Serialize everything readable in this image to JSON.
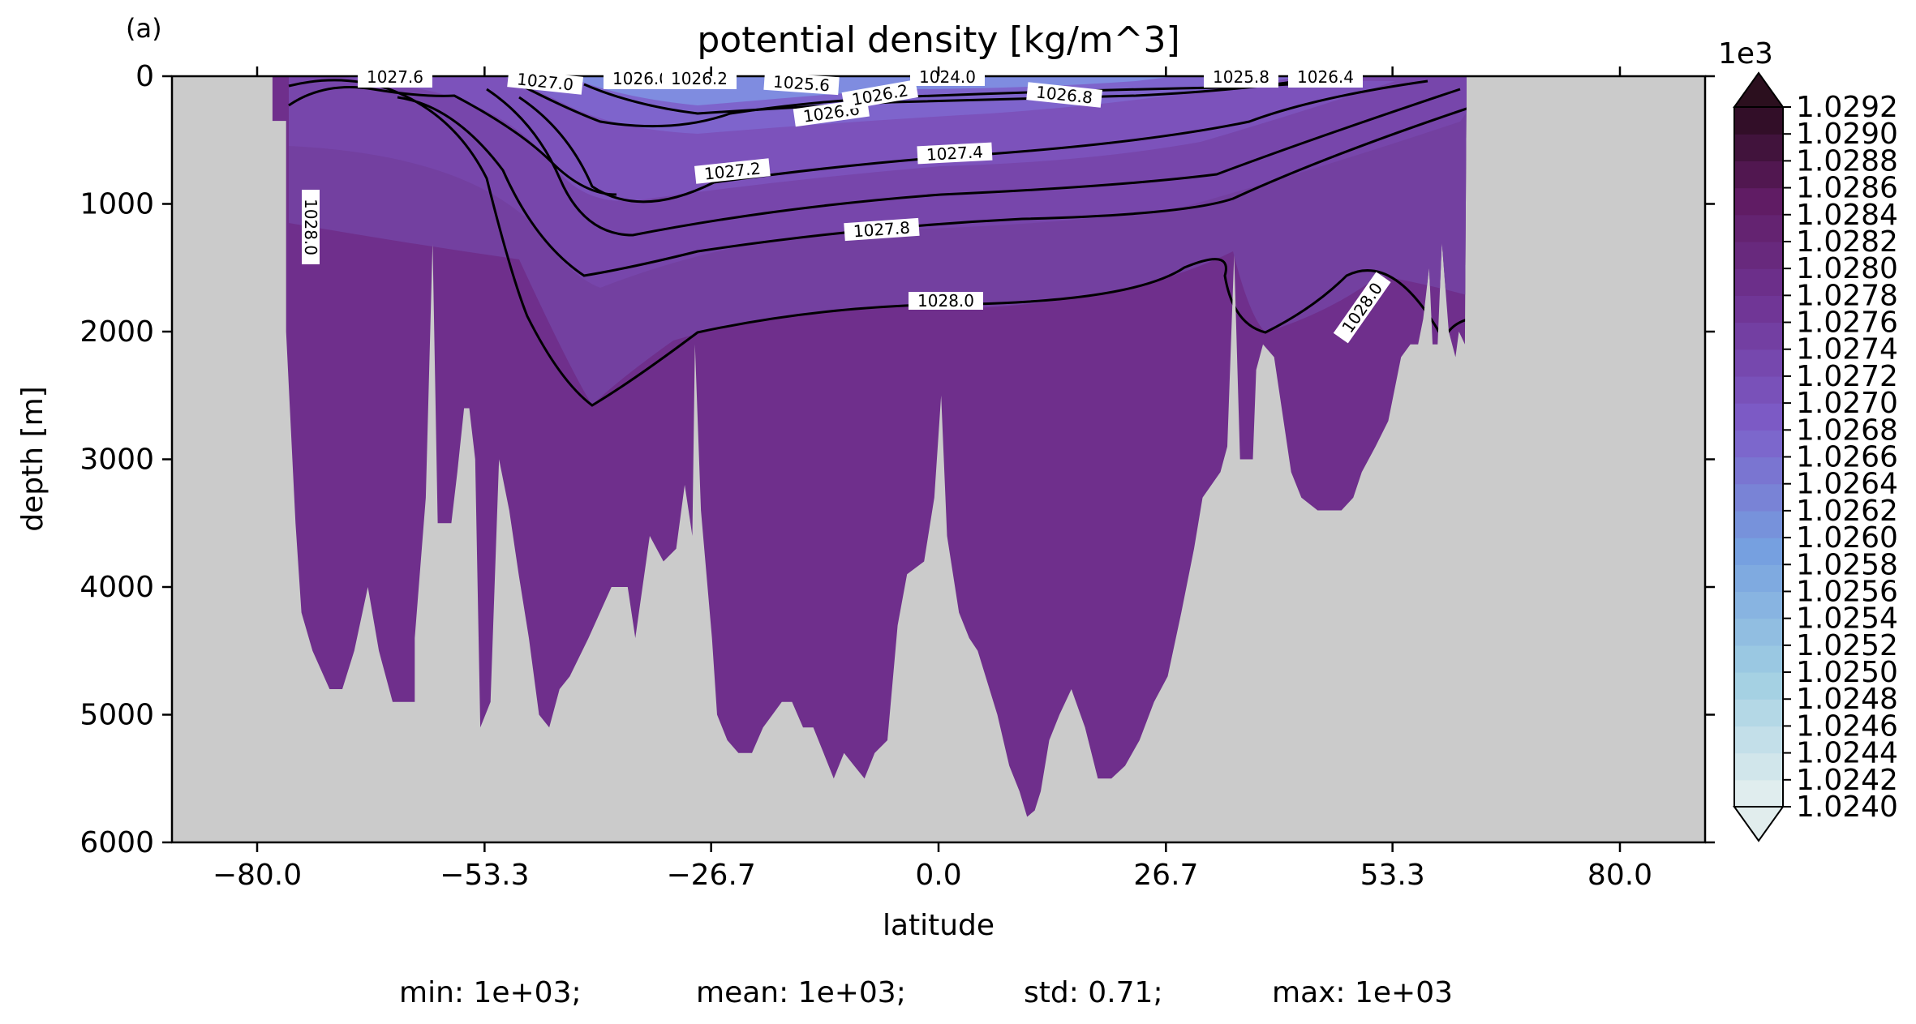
{
  "chart_data": {
    "type": "contour",
    "panel_label": "(a)",
    "title": "potential density [kg/m^3]",
    "xlabel": "latitude",
    "ylabel": "depth [m]",
    "xlim": [
      -90,
      90
    ],
    "ylim": [
      6000,
      0
    ],
    "xticks": [
      "-80.0",
      "-53.3",
      "-26.7",
      "0.0",
      "26.7",
      "53.3",
      "80.0"
    ],
    "yticks": [
      "0",
      "1000",
      "2000",
      "3000",
      "4000",
      "5000",
      "6000"
    ],
    "colorbar": {
      "multiplier": "1e3",
      "ticks": [
        "1.0240",
        "1.0242",
        "1.0244",
        "1.0246",
        "1.0248",
        "1.0250",
        "1.0252",
        "1.0254",
        "1.0256",
        "1.0258",
        "1.0260",
        "1.0262",
        "1.0264",
        "1.0266",
        "1.0268",
        "1.0270",
        "1.0272",
        "1.0274",
        "1.0276",
        "1.0278",
        "1.0280",
        "1.0282",
        "1.0284",
        "1.0286",
        "1.0288",
        "1.0290",
        "1.0292"
      ]
    },
    "contour_labels": [
      "1027.6",
      "1027.0",
      "1026.0",
      "1026.2",
      "1025.6",
      "1026.6",
      "1026.2",
      "1024.0",
      "1026.8",
      "1025.8",
      "1026.4",
      "1027.2",
      "1027.4",
      "1027.8",
      "1028.0",
      "1028.0",
      "1028.0"
    ],
    "stats": {
      "min": "min: 1e+03;",
      "mean": "mean: 1e+03;",
      "std": "std: 0.71;",
      "max": "max: 1e+03"
    },
    "colors": {
      "land": "#cbcbcb",
      "deep_water": "#6f2f8c",
      "mid_water": "#7a44ad",
      "upper_water": "#7f5cc6",
      "surface_water": "#7f8fe0"
    },
    "bathymetry_profile": [
      [
        -78.2,
        0
      ],
      [
        -78.2,
        350
      ],
      [
        -76.6,
        350
      ],
      [
        -76.6,
        2000
      ],
      [
        -75.5,
        3500
      ],
      [
        -74.8,
        4200
      ],
      [
        -73.5,
        4500
      ],
      [
        -71.5,
        4800
      ],
      [
        -70,
        4800
      ],
      [
        -68.6,
        4500
      ],
      [
        -67,
        4000
      ],
      [
        -65.7,
        4500
      ],
      [
        -64.1,
        4900
      ],
      [
        -61.5,
        4900
      ],
      [
        -61.5,
        4400
      ],
      [
        -60.2,
        3300
      ],
      [
        -59.4,
        1300
      ],
      [
        -58.8,
        3500
      ],
      [
        -57.2,
        3500
      ],
      [
        -56.5,
        3100
      ],
      [
        -55.7,
        2600
      ],
      [
        -55.1,
        2600
      ],
      [
        -54.4,
        3000
      ],
      [
        -53.8,
        5100
      ],
      [
        -52.6,
        4900
      ],
      [
        -51.6,
        3000
      ],
      [
        -50.4,
        3400
      ],
      [
        -49.3,
        3900
      ],
      [
        -48.1,
        4400
      ],
      [
        -46.9,
        5000
      ],
      [
        -45.7,
        5100
      ],
      [
        -44.5,
        4800
      ],
      [
        -43.3,
        4700
      ],
      [
        -41.1,
        4400
      ],
      [
        -38.4,
        4000
      ],
      [
        -36.5,
        4000
      ],
      [
        -35.6,
        4400
      ],
      [
        -33.9,
        3600
      ],
      [
        -32.3,
        3800
      ],
      [
        -30.8,
        3700
      ],
      [
        -29.8,
        3200
      ],
      [
        -28.9,
        3600
      ],
      [
        -28.6,
        2100
      ],
      [
        -27.9,
        3400
      ],
      [
        -26.6,
        4400
      ],
      [
        -26,
        5000
      ],
      [
        -24.8,
        5200
      ],
      [
        -23.5,
        5300
      ],
      [
        -21.9,
        5300
      ],
      [
        -20.6,
        5100
      ],
      [
        -18.4,
        4900
      ],
      [
        -17.2,
        4900
      ],
      [
        -15.9,
        5100
      ],
      [
        -14.7,
        5100
      ],
      [
        -13.5,
        5300
      ],
      [
        -12.3,
        5500
      ],
      [
        -11.1,
        5300
      ],
      [
        -9.9,
        5400
      ],
      [
        -8.7,
        5500
      ],
      [
        -7.5,
        5300
      ],
      [
        -6,
        5200
      ],
      [
        -4.8,
        4300
      ],
      [
        -3.7,
        3900
      ],
      [
        -1.7,
        3800
      ],
      [
        -0.5,
        3300
      ],
      [
        0.3,
        2500
      ],
      [
        1,
        3600
      ],
      [
        2.4,
        4200
      ],
      [
        3.6,
        4400
      ],
      [
        4.6,
        4500
      ],
      [
        6.9,
        5000
      ],
      [
        8.3,
        5400
      ],
      [
        9.5,
        5600
      ],
      [
        10.4,
        5800
      ],
      [
        11.3,
        5750
      ],
      [
        12,
        5600
      ],
      [
        13,
        5200
      ],
      [
        14.2,
        5000
      ],
      [
        15.6,
        4800
      ],
      [
        17.2,
        5100
      ],
      [
        18.7,
        5500
      ],
      [
        20.3,
        5500
      ],
      [
        21.9,
        5400
      ],
      [
        23.6,
        5200
      ],
      [
        25.3,
        4900
      ],
      [
        26.9,
        4700
      ],
      [
        28.5,
        4200
      ],
      [
        30,
        3700
      ],
      [
        31,
        3300
      ],
      [
        33.1,
        3100
      ],
      [
        33.9,
        2900
      ],
      [
        34.7,
        1400
      ],
      [
        35.4,
        3000
      ],
      [
        36.9,
        3000
      ],
      [
        37.3,
        2300
      ],
      [
        38.1,
        2100
      ],
      [
        39.4,
        2200
      ],
      [
        41.4,
        3100
      ],
      [
        42.6,
        3300
      ],
      [
        44.5,
        3400
      ],
      [
        47.3,
        3400
      ],
      [
        48.7,
        3300
      ],
      [
        49.7,
        3100
      ],
      [
        51.3,
        2900
      ],
      [
        52.8,
        2700
      ],
      [
        54.3,
        2200
      ],
      [
        55.4,
        2100
      ],
      [
        56.3,
        2100
      ],
      [
        56.9,
        1900
      ],
      [
        57.6,
        1500
      ],
      [
        58,
        2100
      ],
      [
        58.6,
        2100
      ],
      [
        59.1,
        1300
      ],
      [
        59.9,
        2000
      ],
      [
        60.7,
        2200
      ],
      [
        61.1,
        2000
      ],
      [
        61.8,
        2100
      ],
      [
        62,
        0
      ]
    ]
  }
}
